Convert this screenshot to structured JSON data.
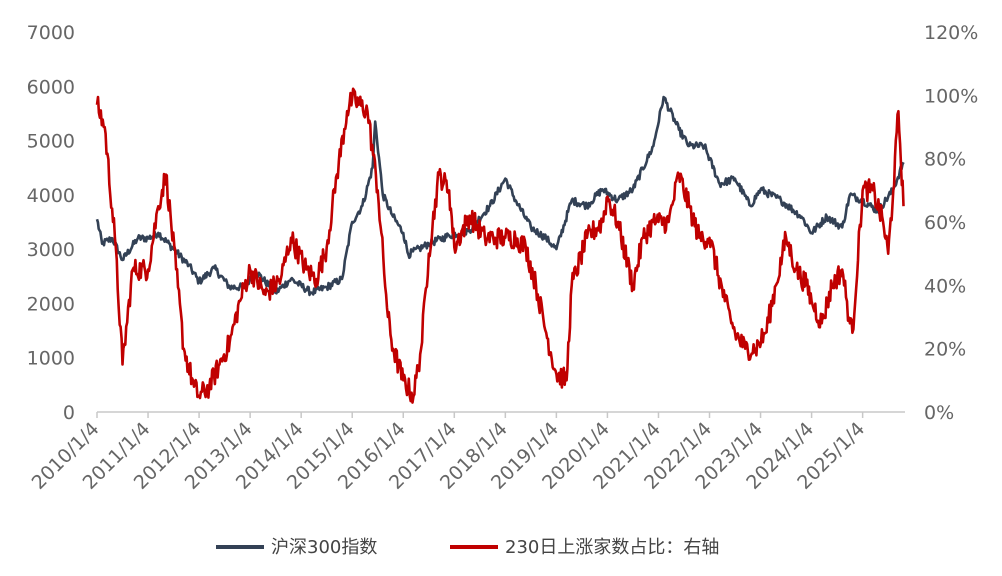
{
  "chart_data": {
    "type": "line",
    "title": "",
    "xlabel": "",
    "ylabel": "",
    "x_tick_labels": [
      "2010/1/4",
      "2011/1/4",
      "2012/1/4",
      "2013/1/4",
      "2014/1/4",
      "2015/1/4",
      "2016/1/4",
      "2017/1/4",
      "2018/1/4",
      "2019/1/4",
      "2020/1/4",
      "2021/1/4",
      "2022/1/4",
      "2023/1/4",
      "2024/1/4",
      "2025/1/4"
    ],
    "x_range": [
      "2010/1/4",
      "2025/10/31"
    ],
    "y_left": {
      "range": [
        0,
        7000
      ],
      "ticks": [
        "0",
        "1000",
        "2000",
        "3000",
        "4000",
        "5000",
        "6000",
        "7000"
      ]
    },
    "y_right": {
      "range": [
        0,
        120
      ],
      "unit": "%",
      "ticks": [
        "0%",
        "20%",
        "40%",
        "60%",
        "80%",
        "100%",
        "120%"
      ]
    },
    "grid": false,
    "legend_position": "bottom",
    "colors": {
      "csi300": "#334155",
      "ratio": "#c00000",
      "axis": "#c8c8c8",
      "text": "#666666"
    },
    "series": [
      {
        "name": "沪深300指数",
        "axis": "left",
        "x": [
          2010.0,
          2010.1,
          2010.3,
          2010.5,
          2010.8,
          2011.0,
          2011.2,
          2011.5,
          2011.8,
          2012.0,
          2012.3,
          2012.6,
          2012.9,
          2013.1,
          2013.5,
          2013.8,
          2014.2,
          2014.5,
          2014.8,
          2015.0,
          2015.2,
          2015.4,
          2015.45,
          2015.6,
          2015.8,
          2016.0,
          2016.1,
          2016.5,
          2016.9,
          2017.3,
          2017.7,
          2018.0,
          2018.2,
          2018.5,
          2018.8,
          2019.0,
          2019.3,
          2019.6,
          2019.9,
          2020.2,
          2020.5,
          2020.9,
          2021.1,
          2021.4,
          2021.6,
          2021.9,
          2022.2,
          2022.5,
          2022.8,
          2023.0,
          2023.4,
          2023.8,
          2024.0,
          2024.3,
          2024.6,
          2024.75,
          2025.0,
          2025.3,
          2025.6,
          2025.8
        ],
        "values": [
          3550,
          3100,
          3200,
          2800,
          3200,
          3200,
          3300,
          3000,
          2700,
          2400,
          2650,
          2300,
          2300,
          2600,
          2200,
          2450,
          2200,
          2300,
          2450,
          3500,
          3800,
          4500,
          5350,
          4000,
          3600,
          3300,
          2900,
          3100,
          3250,
          3350,
          3800,
          4300,
          3900,
          3400,
          3200,
          3000,
          3900,
          3800,
          4100,
          3900,
          4100,
          4900,
          5800,
          5200,
          4900,
          4900,
          4200,
          4300,
          3800,
          4100,
          3900,
          3600,
          3300,
          3600,
          3400,
          4000,
          3900,
          3700,
          4100,
          4600
        ]
      },
      {
        "name": "230日上涨家数占比：右轴",
        "axis": "right",
        "x": [
          2010.0,
          2010.15,
          2010.35,
          2010.5,
          2010.7,
          2011.0,
          2011.2,
          2011.35,
          2011.55,
          2011.7,
          2011.9,
          2012.0,
          2012.2,
          2012.4,
          2012.6,
          2012.8,
          2013.0,
          2013.3,
          2013.6,
          2013.8,
          2014.1,
          2014.3,
          2014.5,
          2014.7,
          2014.9,
          2015.0,
          2015.3,
          2015.5,
          2015.7,
          2015.8,
          2016.0,
          2016.2,
          2016.35,
          2016.5,
          2016.7,
          2016.9,
          2017.0,
          2017.3,
          2017.6,
          2017.8,
          2018.0,
          2018.2,
          2018.4,
          2018.6,
          2018.8,
          2019.0,
          2019.2,
          2019.3,
          2019.6,
          2019.9,
          2020.0,
          2020.2,
          2020.5,
          2020.7,
          2020.9,
          2021.0,
          2021.2,
          2021.4,
          2021.6,
          2021.8,
          2022.0,
          2022.3,
          2022.5,
          2022.7,
          2022.9,
          2023.1,
          2023.3,
          2023.5,
          2023.7,
          2023.9,
          2024.0,
          2024.2,
          2024.4,
          2024.6,
          2024.75,
          2024.8,
          2025.0,
          2025.2,
          2025.4,
          2025.5,
          2025.6,
          2025.7,
          2025.8
        ],
        "values": [
          97,
          90,
          55,
          15,
          45,
          45,
          65,
          75,
          45,
          20,
          8,
          5,
          8,
          15,
          22,
          35,
          45,
          37,
          42,
          55,
          45,
          42,
          52,
          75,
          95,
          99,
          95,
          70,
          30,
          20,
          10,
          5,
          20,
          50,
          75,
          70,
          52,
          62,
          55,
          55,
          55,
          55,
          52,
          40,
          25,
          12,
          10,
          40,
          55,
          60,
          68,
          60,
          40,
          55,
          60,
          60,
          60,
          75,
          65,
          55,
          55,
          35,
          25,
          20,
          20,
          25,
          40,
          55,
          45,
          40,
          35,
          28,
          40,
          45,
          28,
          25,
          70,
          70,
          60,
          50,
          70,
          95,
          65
        ]
      }
    ]
  },
  "legend": [
    {
      "label": "沪深300指数",
      "color": "#334155"
    },
    {
      "label": "230日上涨家数占比：右轴",
      "color": "#c00000"
    }
  ]
}
